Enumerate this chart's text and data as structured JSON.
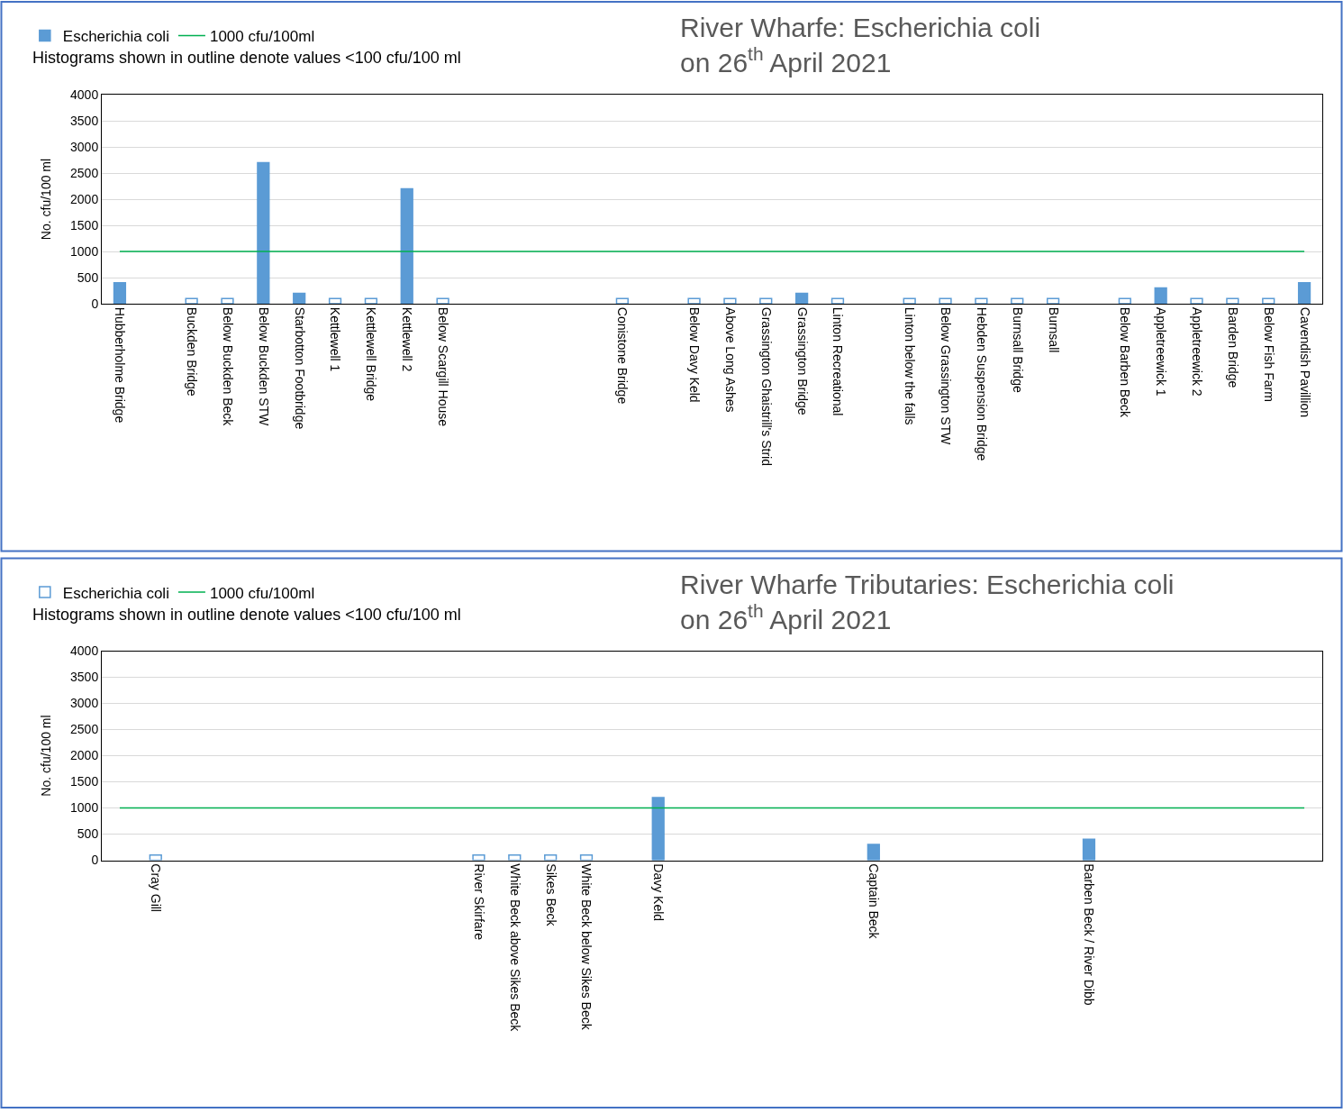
{
  "chart_data": [
    {
      "type": "bar",
      "title": "River Wharfe: Escherichia coli\non 26$^{th}$ April 2021",
      "ylabel": "No. cfu/100 ml",
      "annotations": [
        "Histograms shown in outline denote values <100 cfu/100 ml"
      ],
      "categories": [
        "Hubberholme Bridge",
        null,
        "Buckden Bridge",
        "Below Buckden Beck",
        "Below Buckden STW",
        "Starbotton Footbridge",
        "Kettlewell 1",
        "Kettlewell Bridge",
        "Kettlewell 2",
        "Below Scargill House",
        null,
        null,
        null,
        null,
        "Conistone Bridge",
        null,
        "Below Davy Keld",
        "Above Long Ashes",
        "Grassington Ghaistrill's Strid",
        "Grassington Bridge",
        "Linton Recreational",
        null,
        "Linton below the falls",
        "Below Grassington STW",
        "Hebden Suspension Bridge",
        "Burnsall Bridge",
        "Burnsall",
        null,
        "Below Barben Beck",
        "Appletreewick 1",
        "Appletreewick 2",
        "Barden Bridge",
        "Below Fish Farm",
        "Cavendish Pavillion"
      ],
      "series": [
        {
          "name": "Escherichia coli",
          "color": "#5b9bd5",
          "values": [
            400,
            null,
            100,
            100,
            2700,
            200,
            100,
            100,
            2200,
            100,
            null,
            null,
            null,
            null,
            100,
            null,
            100,
            100,
            100,
            200,
            100,
            null,
            100,
            100,
            100,
            100,
            100,
            null,
            100,
            300,
            100,
            100,
            100,
            400
          ],
          "colors": [
            "#5b9bd5",
            null,
            "#ffffff",
            "#ffffff",
            "#5b9bd5",
            "#5b9bd5",
            "#ffffff",
            "#ffffff",
            "#5b9bd5",
            "#ffffff",
            null,
            null,
            null,
            null,
            "#ffffff",
            null,
            "#ffffff",
            "#ffffff",
            "#ffffff",
            "#5b9bd5",
            "#ffffff",
            null,
            "#ffffff",
            "#ffffff",
            "#ffffff",
            "#ffffff",
            "#ffffff",
            null,
            "#ffffff",
            "#5b9bd5",
            "#ffffff",
            "#ffffff",
            "#ffffff",
            "#5b9bd5"
          ]
        }
      ],
      "ref_lines": [
        {
          "axis": "y",
          "value": 1000,
          "label": "1000 cfu/100ml",
          "color": "#00b050"
        }
      ],
      "ylim": [
        0,
        4000
      ],
      "yticks": [
        0,
        500,
        1000,
        1500,
        2000,
        2500,
        3000,
        3500,
        4000
      ],
      "grid": "y",
      "legend": "top left"
    },
    {
      "type": "bar",
      "title": "River Wharfe Tributaries: Escherichia coli\non 26$^{th}$ April 2021",
      "ylabel": "No. cfu/100 ml",
      "annotations": [
        "Histograms shown in outline denote values <100 cfu/100 ml"
      ],
      "categories": [
        null,
        "Cray Gill",
        null,
        null,
        null,
        null,
        null,
        null,
        null,
        null,
        "River Skirfare",
        "White Beck above Sikes Beck",
        "Sikes Beck",
        "White Beck below Sikes Beck",
        null,
        "Davy Keld",
        null,
        null,
        null,
        null,
        null,
        "Captain Beck",
        null,
        null,
        null,
        null,
        null,
        "Barben Beck / River Dibb",
        null,
        null,
        null,
        null,
        null,
        null
      ],
      "series": [
        {
          "name": "Escherichia coli",
          "color": "#5b9bd5",
          "values": [
            null,
            100,
            null,
            null,
            null,
            null,
            null,
            null,
            null,
            null,
            100,
            100,
            100,
            100,
            null,
            1200,
            null,
            null,
            null,
            null,
            null,
            300,
            null,
            null,
            null,
            null,
            null,
            400,
            null,
            null,
            null,
            null,
            null,
            null
          ],
          "colors": [
            null,
            "#ffffff",
            null,
            null,
            null,
            null,
            null,
            null,
            null,
            null,
            "#ffffff",
            "#ffffff",
            "#ffffff",
            "#ffffff",
            null,
            "#5b9bd5",
            null,
            null,
            null,
            null,
            null,
            "#5b9bd5",
            null,
            null,
            null,
            null,
            null,
            "#5b9bd5",
            null,
            null,
            null,
            null,
            null,
            null
          ]
        }
      ],
      "ref_lines": [
        {
          "axis": "y",
          "value": 1000,
          "label": "1000 cfu/100ml",
          "color": "#00b050"
        }
      ],
      "ylim": [
        0,
        4000
      ],
      "yticks": [
        0,
        500,
        1000,
        1500,
        2000,
        2500,
        3000,
        3500,
        4000
      ],
      "grid": "y",
      "legend": "top left"
    }
  ]
}
